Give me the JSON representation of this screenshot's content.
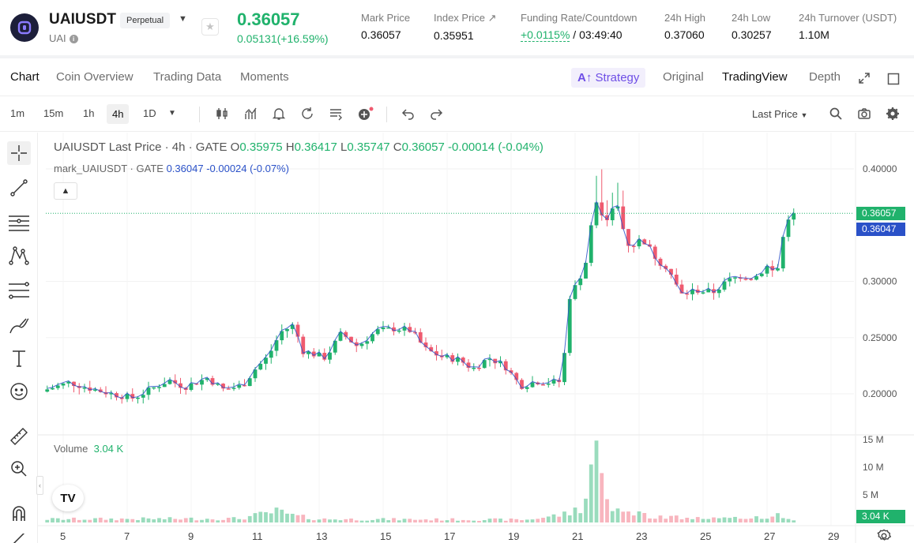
{
  "ticker": {
    "symbol": "UAIUSDT",
    "contract_type": "Perpetual",
    "base": "UAI",
    "last_price": "0.36057",
    "change": "0.05131(+16.59%)",
    "stats": [
      {
        "label": "Mark Price",
        "value": "0.36057"
      },
      {
        "label": "Index Price ↗",
        "value": "0.35951"
      },
      {
        "label": "Funding Rate/Countdown",
        "value_green": "+0.0115%",
        "value": " / 03:49:40"
      },
      {
        "label": "24h High",
        "value": "0.37060"
      },
      {
        "label": "24h Low",
        "value": "0.30257"
      },
      {
        "label": "24h Turnover (USDT)",
        "value": "1.10M"
      }
    ],
    "colors": {
      "up": "#20b26c",
      "down": "#ef5a6f",
      "mark": "#2a51c8",
      "accent": "#6e4ee6"
    }
  },
  "tabs": {
    "left": [
      "Chart",
      "Coin Overview",
      "Trading Data",
      "Moments"
    ],
    "active": "Chart",
    "strategy": "Strategy",
    "right": [
      "Original",
      "TradingView",
      "Depth"
    ],
    "right_active": "TradingView"
  },
  "toolbar": {
    "timeframes": [
      "1m",
      "15m",
      "1h",
      "4h",
      "1D"
    ],
    "active_timeframe": "4h",
    "price_type": "Last Price"
  },
  "chart": {
    "legend": {
      "title": "UAIUSDT Last Price · 4h · GATE",
      "open_label": "O",
      "open": "0.35975",
      "high_label": "H",
      "high": "0.36417",
      "low_label": "L",
      "low": "0.35747",
      "close_label": "C",
      "close": "0.36057",
      "change": "-0.00014 (-0.04%)"
    },
    "mark_legend": {
      "name": "mark_UAIUSDT · GATE",
      "value": "0.36047",
      "change": "-0.00024 (-0.07%)"
    },
    "volume_legend": {
      "label": "Volume",
      "value": "3.04 K"
    },
    "price_tags": {
      "last": "0.36057",
      "mark": "0.36047",
      "volume": "3.04 K"
    },
    "tv_logo": "TV"
  },
  "chart_data": {
    "type": "candlestick",
    "price_axis": {
      "ticks": [
        "0.40000",
        "0.30000",
        "0.25000",
        "0.20000"
      ],
      "tick_values": [
        0.4,
        0.3,
        0.25,
        0.2
      ],
      "range": [
        0.16,
        0.42
      ]
    },
    "volume_axis": {
      "ticks": [
        "15 M",
        "10 M",
        "5 M"
      ],
      "tick_values": [
        15,
        10,
        5
      ],
      "unit": "M"
    },
    "x_ticks": [
      "5",
      "7",
      "9",
      "11",
      "13",
      "15",
      "17",
      "19",
      "21",
      "23",
      "25",
      "27",
      "29"
    ],
    "x_tick_days": [
      5,
      7,
      9,
      11,
      13,
      15,
      17,
      19,
      21,
      23,
      25,
      27,
      29
    ],
    "day_range": [
      4.5,
      29.8
    ],
    "anchor_closes": [
      [
        4.5,
        0.204
      ],
      [
        5.2,
        0.21
      ],
      [
        5.8,
        0.205
      ],
      [
        6.5,
        0.2
      ],
      [
        7.2,
        0.196
      ],
      [
        7.8,
        0.205
      ],
      [
        8.3,
        0.212
      ],
      [
        8.8,
        0.206
      ],
      [
        9.5,
        0.214
      ],
      [
        10.0,
        0.204
      ],
      [
        10.6,
        0.207
      ],
      [
        11.0,
        0.222
      ],
      [
        11.4,
        0.233
      ],
      [
        11.8,
        0.255
      ],
      [
        12.2,
        0.261
      ],
      [
        12.5,
        0.238
      ],
      [
        13.2,
        0.232
      ],
      [
        13.7,
        0.254
      ],
      [
        14.2,
        0.242
      ],
      [
        14.8,
        0.256
      ],
      [
        15.4,
        0.258
      ],
      [
        15.9,
        0.256
      ],
      [
        16.3,
        0.24
      ],
      [
        16.8,
        0.233
      ],
      [
        17.4,
        0.23
      ],
      [
        17.8,
        0.222
      ],
      [
        18.3,
        0.232
      ],
      [
        18.8,
        0.225
      ],
      [
        19.3,
        0.207
      ],
      [
        19.8,
        0.211
      ],
      [
        20.3,
        0.21
      ],
      [
        20.6,
        0.211
      ],
      [
        20.8,
        0.285
      ],
      [
        21.1,
        0.3
      ],
      [
        21.4,
        0.322
      ],
      [
        21.6,
        0.375
      ],
      [
        21.9,
        0.352
      ],
      [
        22.3,
        0.368
      ],
      [
        22.7,
        0.33
      ],
      [
        23.1,
        0.338
      ],
      [
        23.6,
        0.318
      ],
      [
        23.9,
        0.312
      ],
      [
        24.3,
        0.288
      ],
      [
        24.8,
        0.292
      ],
      [
        25.3,
        0.29
      ],
      [
        25.8,
        0.301
      ],
      [
        26.2,
        0.305
      ],
      [
        26.6,
        0.303
      ],
      [
        27.0,
        0.313
      ],
      [
        27.3,
        0.306
      ],
      [
        27.6,
        0.356
      ],
      [
        27.85,
        0.36057
      ]
    ],
    "volume_profile": [
      [
        4.5,
        0.6
      ],
      [
        10.5,
        0.7
      ],
      [
        11.7,
        2.0
      ],
      [
        12.2,
        1.2
      ],
      [
        13.0,
        0.6
      ],
      [
        19.5,
        0.5
      ],
      [
        20.8,
        1.6
      ],
      [
        21.3,
        3.2
      ],
      [
        21.6,
        15.0
      ],
      [
        21.9,
        4.0
      ],
      [
        22.4,
        2.0
      ],
      [
        23.3,
        1.3
      ],
      [
        24.5,
        0.8
      ],
      [
        26.0,
        0.7
      ],
      [
        27.5,
        1.3
      ],
      [
        27.85,
        0.4
      ]
    ],
    "volume_last": "3.04 K"
  }
}
